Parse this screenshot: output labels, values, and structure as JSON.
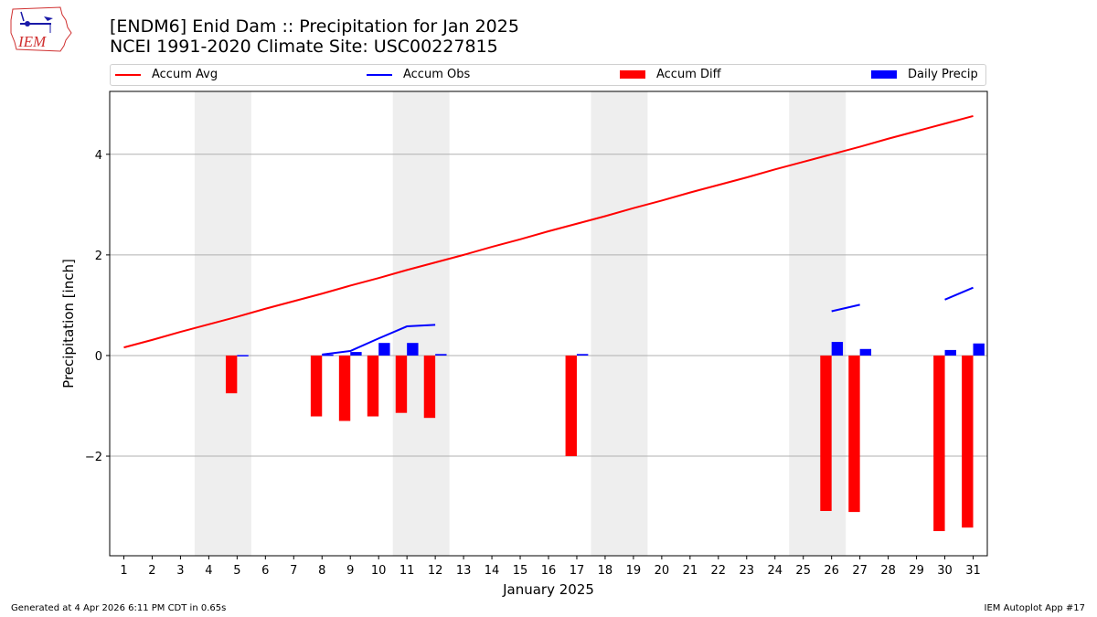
{
  "header": {
    "title_line1": "[ENDM6] Enid Dam :: Precipitation for Jan 2025",
    "title_line2": "NCEI 1991-2020 Climate Site: USC00227815",
    "logo_text": "IEM"
  },
  "footer": {
    "generated": "Generated at 4 Apr 2026 6:11 PM CDT in 0.65s",
    "app": "IEM Autoplot App #17"
  },
  "colors": {
    "accum_avg": "#ff0000",
    "accum_obs": "#0000ff",
    "accum_diff": "#ff0000",
    "daily_precip": "#0000ff",
    "weekend_shade": "#eeeeee",
    "grid": "#b0b0b0"
  },
  "chart_data": {
    "type": "bar",
    "title": "[ENDM6] Enid Dam :: Precipitation for Jan 2025",
    "subtitle": "NCEI 1991-2020 Climate Site: USC00227815",
    "xlabel": "January 2025",
    "ylabel": "Precipitation [inch]",
    "xlim": [
      0.5,
      31.5
    ],
    "ylim": [
      -3.98,
      5.25
    ],
    "yticks": [
      -2,
      0,
      2,
      4
    ],
    "ytick_labels": [
      "−2",
      "0",
      "2",
      "4"
    ],
    "grid": "y",
    "legend_position": "top",
    "x": [
      1,
      2,
      3,
      4,
      5,
      6,
      7,
      8,
      9,
      10,
      11,
      12,
      13,
      14,
      15,
      16,
      17,
      18,
      19,
      20,
      21,
      22,
      23,
      24,
      25,
      26,
      27,
      28,
      29,
      30,
      31
    ],
    "xtick_labels": [
      "1",
      "2",
      "3",
      "4",
      "5",
      "6",
      "7",
      "8",
      "9",
      "10",
      "11",
      "12",
      "13",
      "14",
      "15",
      "16",
      "17",
      "18",
      "19",
      "20",
      "21",
      "22",
      "23",
      "24",
      "25",
      "26",
      "27",
      "28",
      "29",
      "30",
      "31"
    ],
    "weekend_shading": [
      [
        4,
        5
      ],
      [
        11,
        12
      ],
      [
        18,
        19
      ],
      [
        25,
        26
      ]
    ],
    "series": [
      {
        "name": "Accum Avg",
        "kind": "line",
        "values": [
          0.16,
          0.31,
          0.47,
          0.62,
          0.77,
          0.93,
          1.08,
          1.23,
          1.39,
          1.54,
          1.7,
          1.85,
          2.0,
          2.16,
          2.31,
          2.47,
          2.62,
          2.77,
          2.93,
          3.08,
          3.24,
          3.39,
          3.54,
          3.7,
          3.85,
          4.0,
          4.15,
          4.31,
          4.46,
          4.61,
          4.76
        ]
      },
      {
        "name": "Accum Obs",
        "kind": "line",
        "values": [
          null,
          null,
          null,
          null,
          null,
          null,
          null,
          0.02,
          0.09,
          0.34,
          0.58,
          0.61,
          null,
          null,
          null,
          null,
          null,
          null,
          null,
          null,
          null,
          null,
          null,
          null,
          null,
          0.88,
          1.01,
          null,
          null,
          1.11,
          1.35
        ]
      },
      {
        "name": "Accum Diff",
        "kind": "bar",
        "values": [
          null,
          null,
          null,
          null,
          -0.75,
          null,
          null,
          -1.21,
          -1.3,
          -1.21,
          -1.14,
          -1.24,
          null,
          null,
          null,
          null,
          -2.0,
          null,
          null,
          null,
          null,
          null,
          null,
          null,
          null,
          -3.09,
          -3.11,
          null,
          null,
          -3.49,
          -3.42
        ]
      },
      {
        "name": "Daily Precip",
        "kind": "bar",
        "values": [
          null,
          null,
          null,
          null,
          0.01,
          null,
          null,
          0.02,
          0.07,
          0.25,
          0.25,
          0.03,
          null,
          null,
          null,
          null,
          0.03,
          null,
          null,
          null,
          null,
          null,
          null,
          null,
          null,
          0.27,
          0.13,
          null,
          null,
          0.11,
          0.24
        ]
      }
    ]
  }
}
